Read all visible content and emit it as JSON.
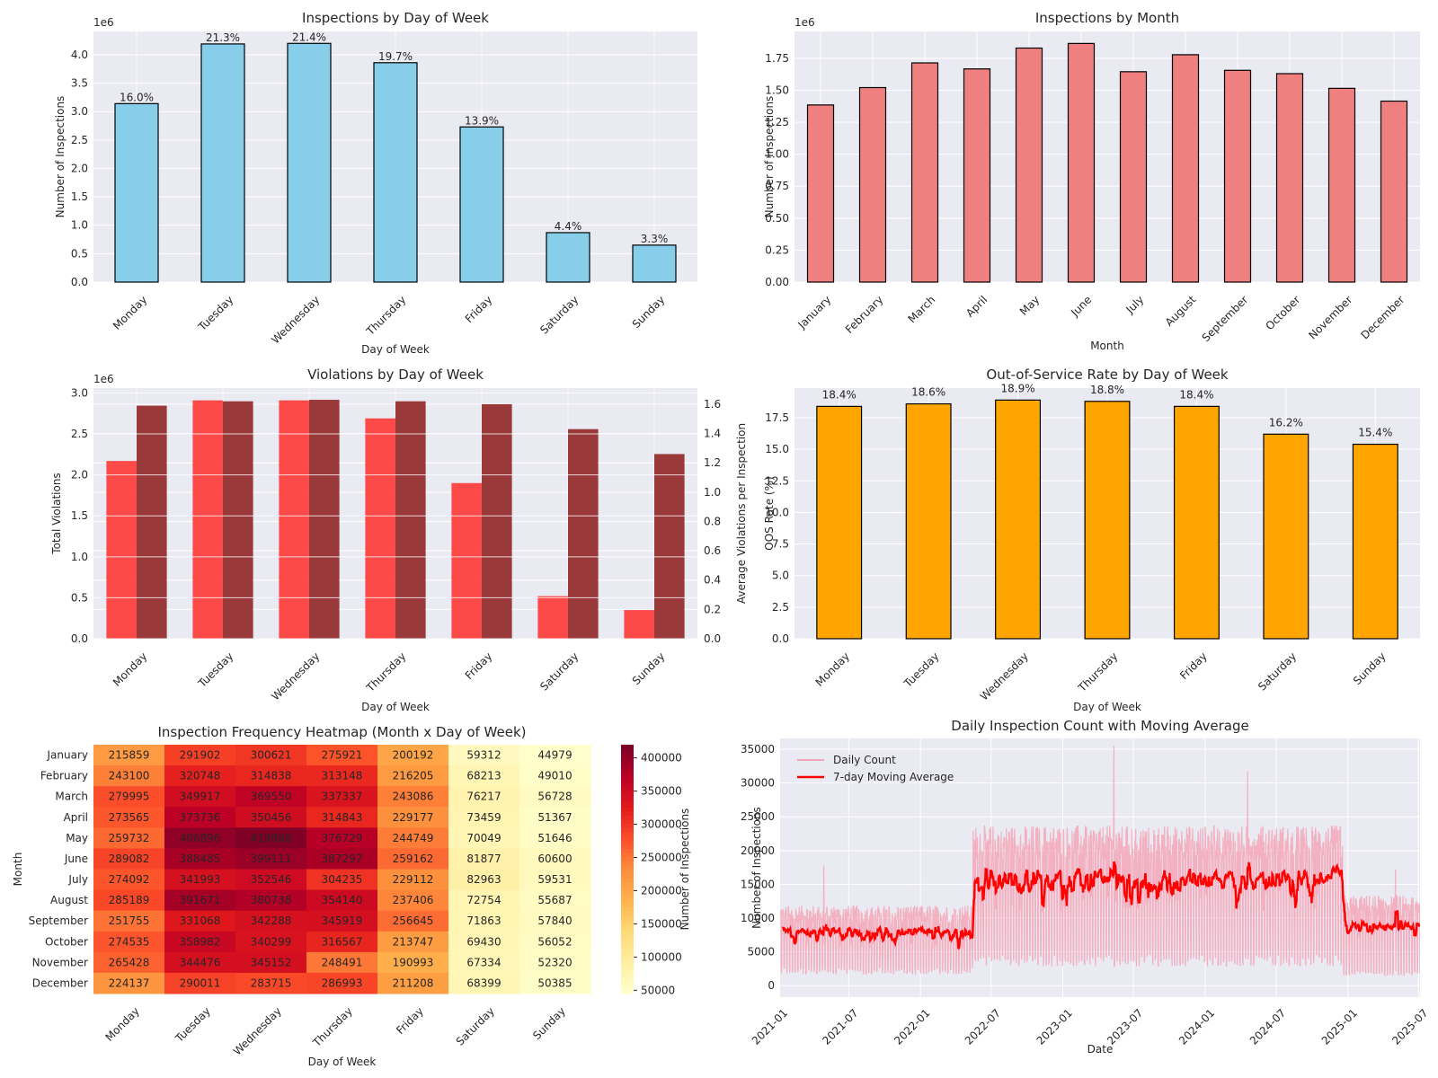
{
  "chart_data": [
    {
      "id": "dow_inspections",
      "type": "bar",
      "title": "Inspections by Day of Week",
      "xlabel": "Day of Week",
      "ylabel": "Number of Inspections",
      "scale_label": "1e6",
      "categories": [
        "Monday",
        "Tuesday",
        "Wednesday",
        "Thursday",
        "Friday",
        "Saturday",
        "Sunday"
      ],
      "values": [
        3.14,
        4.19,
        4.2,
        3.86,
        2.73,
        0.87,
        0.65
      ],
      "bar_labels": [
        "16.0%",
        "21.3%",
        "21.4%",
        "19.7%",
        "13.9%",
        "4.4%",
        "3.3%"
      ],
      "yticks": [
        "0.0",
        "0.5",
        "1.0",
        "1.5",
        "2.0",
        "2.5",
        "3.0",
        "3.5",
        "4.0"
      ],
      "ylim": [
        0,
        4.41
      ],
      "grid": true,
      "colors": {
        "bar": "#87ceeb"
      }
    },
    {
      "id": "month_inspections",
      "type": "bar",
      "title": "Inspections by Month",
      "xlabel": "Month",
      "ylabel": "Number of Inspections",
      "scale_label": "1e6",
      "categories": [
        "January",
        "February",
        "March",
        "April",
        "May",
        "June",
        "July",
        "August",
        "September",
        "October",
        "November",
        "December"
      ],
      "values": [
        1.385,
        1.521,
        1.714,
        1.667,
        1.83,
        1.866,
        1.645,
        1.778,
        1.656,
        1.63,
        1.515,
        1.415
      ],
      "yticks": [
        "0.00",
        "0.25",
        "0.50",
        "0.75",
        "1.00",
        "1.25",
        "1.50",
        "1.75"
      ],
      "ylim": [
        0,
        1.96
      ],
      "grid": true,
      "colors": {
        "bar": "#f08080"
      }
    },
    {
      "id": "dow_violations",
      "type": "bar",
      "title": "Violations by Day of Week",
      "xlabel": "Day of Week",
      "ylabel": "Total Violations",
      "ylabel2": "Average Violations per Inspection",
      "scale_label": "1e6",
      "categories": [
        "Monday",
        "Tuesday",
        "Wednesday",
        "Thursday",
        "Friday",
        "Saturday",
        "Sunday"
      ],
      "series": [
        {
          "values": [
            2.17,
            2.91,
            2.91,
            2.69,
            1.9,
            0.52,
            0.35
          ]
        },
        {
          "values": [
            1.59,
            1.62,
            1.63,
            1.62,
            1.6,
            1.43,
            1.26
          ]
        }
      ],
      "yticks": [
        "0.0",
        "0.5",
        "1.0",
        "1.5",
        "2.0",
        "2.5",
        "3.0"
      ],
      "yticks2": [
        "0.0",
        "0.2",
        "0.4",
        "0.6",
        "0.8",
        "1.0",
        "1.2",
        "1.4",
        "1.6"
      ],
      "ylim": [
        0,
        3.06
      ],
      "ylim2": [
        0,
        1.71
      ],
      "grid": true,
      "colors": {
        "bar1": "#ff3b3b",
        "bar2": "#8b1a1a",
        "axis1": "#ff0000",
        "axis2": "#8b0000"
      }
    },
    {
      "id": "dow_oos",
      "type": "bar",
      "title": "Out-of-Service Rate by Day of Week",
      "xlabel": "Day of Week",
      "ylabel": "OOS Rate (%)",
      "categories": [
        "Monday",
        "Tuesday",
        "Wednesday",
        "Thursday",
        "Friday",
        "Saturday",
        "Sunday"
      ],
      "values": [
        18.4,
        18.6,
        18.9,
        18.8,
        18.4,
        16.2,
        15.4
      ],
      "bar_labels": [
        "18.4%",
        "18.6%",
        "18.9%",
        "18.8%",
        "18.4%",
        "16.2%",
        "15.4%"
      ],
      "yticks": [
        "0.0",
        "2.5",
        "5.0",
        "7.5",
        "10.0",
        "12.5",
        "15.0",
        "17.5"
      ],
      "ylim": [
        0,
        19.85
      ],
      "grid": true,
      "colors": {
        "bar": "#ffa500"
      }
    },
    {
      "id": "heatmap",
      "type": "heatmap",
      "title": "Inspection Frequency Heatmap (Month x Day of Week)",
      "xlabel": "Day of Week",
      "ylabel": "Month",
      "colorbar_label": "Number of Inspections",
      "x": [
        "Monday",
        "Tuesday",
        "Wednesday",
        "Thursday",
        "Friday",
        "Saturday",
        "Sunday"
      ],
      "y": [
        "January",
        "February",
        "March",
        "April",
        "May",
        "June",
        "July",
        "August",
        "September",
        "October",
        "November",
        "December"
      ],
      "values": [
        [
          215859,
          291902,
          300621,
          275921,
          200192,
          59312,
          44979
        ],
        [
          243100,
          320748,
          314838,
          313148,
          216205,
          68213,
          49010
        ],
        [
          279995,
          349917,
          369550,
          337337,
          243086,
          76217,
          56728
        ],
        [
          273565,
          373736,
          350456,
          314843,
          229177,
          73459,
          51367
        ],
        [
          259732,
          406896,
          419868,
          376729,
          244749,
          70049,
          51646
        ],
        [
          289082,
          388485,
          399111,
          387297,
          259162,
          81877,
          60600
        ],
        [
          274092,
          341993,
          352546,
          304235,
          229112,
          82963,
          59531
        ],
        [
          285189,
          391671,
          380738,
          354140,
          237406,
          72754,
          55687
        ],
        [
          251755,
          331068,
          342288,
          345919,
          256645,
          71863,
          57840
        ],
        [
          274535,
          358982,
          340299,
          316567,
          213747,
          69430,
          56052
        ],
        [
          265428,
          344476,
          345152,
          248491,
          190993,
          67334,
          52320
        ],
        [
          224137,
          290011,
          283715,
          286993,
          211208,
          68399,
          50385
        ]
      ],
      "cbar_ticks": [
        "50000",
        "100000",
        "150000",
        "200000",
        "250000",
        "300000",
        "350000",
        "400000"
      ],
      "cbar_range": [
        44979,
        419868
      ],
      "colormap": "YlOrRd"
    },
    {
      "id": "daily",
      "type": "line",
      "title": "Daily Inspection Count with Moving Average",
      "xlabel": "Date",
      "ylabel": "Number of Inspections",
      "legend": [
        "Daily Count",
        "7-day Moving Average"
      ],
      "legend_position": "top-left",
      "x_range": [
        "2021-01-06",
        "2025-07-05"
      ],
      "xticks": [
        "2021-01",
        "2021-07",
        "2022-01",
        "2022-07",
        "2023-01",
        "2023-07",
        "2024-01",
        "2024-07",
        "2025-01",
        "2025-07"
      ],
      "yticks": [
        "0",
        "5000",
        "10000",
        "15000",
        "20000",
        "25000",
        "30000",
        "35000"
      ],
      "ylim": [
        -1700,
        36600
      ],
      "phases": [
        {
          "start": "2021-01-06",
          "end": "2022-05-15",
          "avg": 7700,
          "weekday_high": 11500,
          "weekend_low": 2200
        },
        {
          "start": "2022-05-15",
          "end": "2024-12-20",
          "avg": 15800,
          "weekday_high": 23000,
          "weekend_low": 3800
        },
        {
          "start": "2024-12-20",
          "end": "2025-07-05",
          "avg": 8700,
          "weekday_high": 13000,
          "weekend_low": 1800
        }
      ],
      "spikes": [
        {
          "date": "2021-04-28",
          "value": 17800
        },
        {
          "date": "2023-05-12",
          "value": 35500
        },
        {
          "date": "2024-04-19",
          "value": 31800
        },
        {
          "date": "2025-05-03",
          "value": 17200
        }
      ],
      "colors": {
        "daily": "#f4a6b8",
        "ma": "#ff0000"
      },
      "grid": true
    }
  ]
}
